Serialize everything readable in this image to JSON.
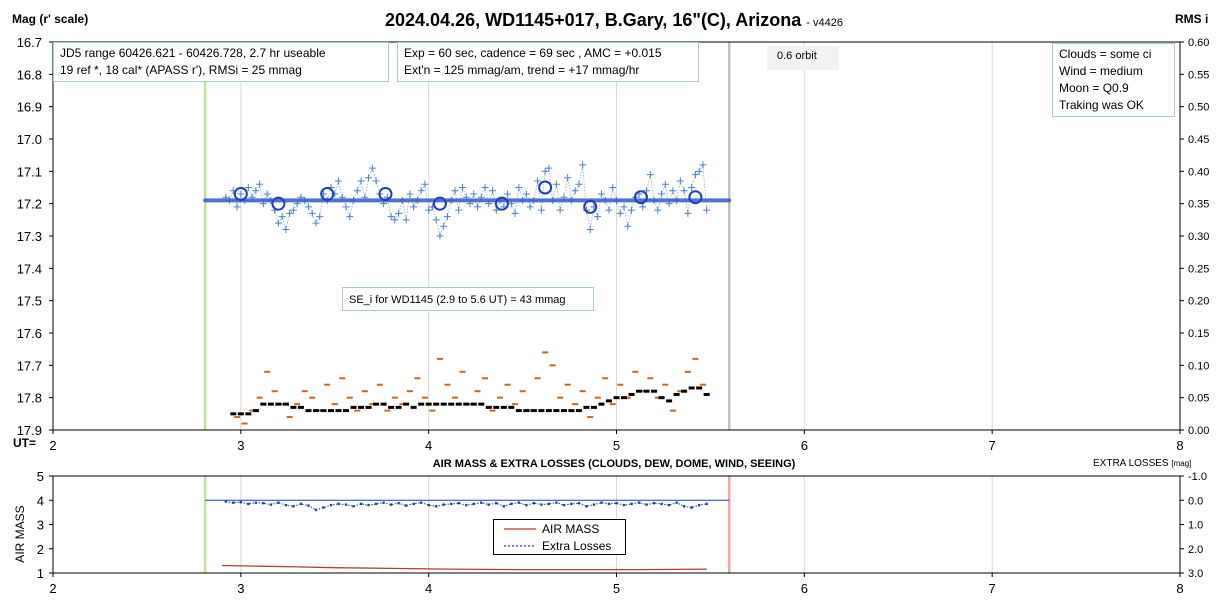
{
  "chart_data": [
    {
      "type": "scatter",
      "title": "2024.04.26, WD1145+017, B.Gary, 16\"(C), Arizona",
      "subtitle": "- v4426",
      "ylabel": "Mag (r' scale)",
      "y2label": "RMS i",
      "xlabel": "UT=",
      "xlim": [
        2,
        8
      ],
      "ylim": [
        16.7,
        17.9
      ],
      "y2lim": [
        0,
        0.6
      ],
      "y_reversed": true,
      "x_ticks": [
        "2",
        "3",
        "4",
        "5",
        "6",
        "7",
        "8"
      ],
      "y_ticks": [
        "16.7",
        "16.8",
        "16.9",
        "17.0",
        "17.1",
        "17.2",
        "17.3",
        "17.4",
        "17.5",
        "17.6",
        "17.7",
        "17.8",
        "17.9"
      ],
      "y2_ticks": [
        "0.60",
        "0.55",
        "0.50",
        "0.45",
        "0.40",
        "0.35",
        "0.30",
        "0.25",
        "0.20",
        "0.15",
        "0.10",
        "0.05",
        "0.00"
      ],
      "grid": "vertical",
      "vertical_markers": [
        {
          "x": 2.81,
          "color": "#bfe39a"
        },
        {
          "x": 5.6,
          "color": "#c0c0c0"
        }
      ],
      "annotations": {
        "info": [
          "JD5 range 60426.621 - 60426.728, 2.7 hr useable",
          "19 ref *, 18 cal*  (APASS r'), RMSi = 25 mmag"
        ],
        "exposure": [
          "Exp = 60 sec, cadence = 69 sec , AMC = +0.015",
          "Ext'n = 125 mmag/am, trend = +17 mmag/hr"
        ],
        "orbit": "0.6 orbit",
        "conditions": [
          "Clouds = some ci",
          "Wind    = medium",
          "Moon    =  Q0.9",
          "Traking was OK"
        ],
        "se_note": "SE_i for WD1145 (2.9 to 5.6 UT) = 43 mmag"
      },
      "series": [
        {
          "role": "individual",
          "x": [
            2.92,
            2.94,
            2.96,
            2.98,
            3.0,
            3.02,
            3.04,
            3.06,
            3.08,
            3.1,
            3.12,
            3.14,
            3.16,
            3.18,
            3.2,
            3.22,
            3.24,
            3.26,
            3.28,
            3.3,
            3.32,
            3.34,
            3.36,
            3.38,
            3.4,
            3.42,
            3.44,
            3.46,
            3.48,
            3.5,
            3.52,
            3.54,
            3.56,
            3.58,
            3.6,
            3.62,
            3.64,
            3.66,
            3.68,
            3.7,
            3.72,
            3.74,
            3.76,
            3.78,
            3.8,
            3.82,
            3.84,
            3.86,
            3.88,
            3.9,
            3.92,
            3.94,
            3.96,
            3.98,
            4.0,
            4.02,
            4.04,
            4.06,
            4.08,
            4.1,
            4.12,
            4.14,
            4.16,
            4.18,
            4.2,
            4.22,
            4.24,
            4.26,
            4.28,
            4.3,
            4.32,
            4.34,
            4.36,
            4.38,
            4.4,
            4.42,
            4.44,
            4.46,
            4.48,
            4.5,
            4.52,
            4.54,
            4.56,
            4.58,
            4.6,
            4.62,
            4.64,
            4.66,
            4.68,
            4.7,
            4.72,
            4.74,
            4.76,
            4.78,
            4.8,
            4.82,
            4.84,
            4.86,
            4.88,
            4.9,
            4.92,
            4.94,
            4.96,
            4.98,
            5.0,
            5.02,
            5.04,
            5.06,
            5.08,
            5.1,
            5.12,
            5.14,
            5.16,
            5.18,
            5.2,
            5.22,
            5.24,
            5.26,
            5.28,
            5.3,
            5.32,
            5.34,
            5.36,
            5.38,
            5.4,
            5.42,
            5.44,
            5.46,
            5.48
          ],
          "y": [
            17.18,
            17.19,
            17.16,
            17.21,
            17.17,
            17.19,
            17.15,
            17.18,
            17.16,
            17.14,
            17.2,
            17.17,
            17.19,
            17.22,
            17.26,
            17.24,
            17.28,
            17.23,
            17.22,
            17.2,
            17.18,
            17.19,
            17.21,
            17.23,
            17.26,
            17.24,
            17.17,
            17.19,
            17.15,
            17.17,
            17.13,
            17.18,
            17.21,
            17.24,
            17.19,
            17.16,
            17.13,
            17.18,
            17.12,
            17.09,
            17.13,
            17.17,
            17.2,
            17.18,
            17.24,
            17.25,
            17.23,
            17.19,
            17.25,
            17.17,
            17.21,
            17.19,
            17.16,
            17.14,
            17.22,
            17.21,
            17.25,
            17.3,
            17.27,
            17.24,
            17.19,
            17.16,
            17.22,
            17.15,
            17.18,
            17.2,
            17.17,
            17.21,
            17.18,
            17.15,
            17.2,
            17.16,
            17.22,
            17.19,
            17.21,
            17.17,
            17.2,
            17.23,
            17.15,
            17.19,
            17.17,
            17.21,
            17.19,
            17.13,
            17.22,
            17.1,
            17.09,
            17.19,
            17.14,
            17.22,
            17.18,
            17.12,
            17.19,
            17.16,
            17.14,
            17.08,
            17.22,
            17.28,
            17.21,
            17.24,
            17.17,
            17.19,
            17.22,
            17.15,
            17.19,
            17.23,
            17.21,
            17.27,
            17.22,
            17.18,
            17.17,
            17.21,
            17.16,
            17.11,
            17.19,
            17.22,
            17.17,
            17.14,
            17.2,
            17.16,
            17.19,
            17.13,
            17.16,
            17.23,
            17.15,
            17.11,
            17.1,
            17.08,
            17.22
          ],
          "color": "#4f81c7"
        },
        {
          "role": "binned",
          "x": [
            3.0,
            3.2,
            3.46,
            3.77,
            4.06,
            4.39,
            4.62,
            4.86,
            5.13,
            5.42
          ],
          "y": [
            17.17,
            17.2,
            17.17,
            17.17,
            17.2,
            17.2,
            17.15,
            17.21,
            17.18,
            17.18
          ],
          "color": "#1f3fb8"
        },
        {
          "role": "fit",
          "x": [
            2.81,
            5.6
          ],
          "y": [
            17.19,
            17.19
          ],
          "color": "#3f63c8"
        },
        {
          "role": "rms_orange",
          "x": [
            2.98,
            3.02,
            3.06,
            3.1,
            3.14,
            3.18,
            3.22,
            3.26,
            3.3,
            3.34,
            3.38,
            3.42,
            3.46,
            3.5,
            3.54,
            3.58,
            3.62,
            3.66,
            3.7,
            3.74,
            3.78,
            3.82,
            3.86,
            3.9,
            3.94,
            3.98,
            4.02,
            4.06,
            4.1,
            4.14,
            4.18,
            4.22,
            4.26,
            4.3,
            4.34,
            4.38,
            4.42,
            4.46,
            4.5,
            4.54,
            4.58,
            4.62,
            4.66,
            4.7,
            4.74,
            4.78,
            4.82,
            4.86,
            4.9,
            4.94,
            4.98,
            5.02,
            5.06,
            5.1,
            5.14,
            5.18,
            5.22,
            5.26,
            5.3,
            5.34,
            5.38,
            5.42,
            5.46
          ],
          "y": [
            0.02,
            0.01,
            0.03,
            0.05,
            0.09,
            0.06,
            0.04,
            0.02,
            0.04,
            0.06,
            0.05,
            0.03,
            0.07,
            0.04,
            0.08,
            0.05,
            0.03,
            0.06,
            0.04,
            0.07,
            0.03,
            0.05,
            0.04,
            0.06,
            0.08,
            0.05,
            0.03,
            0.11,
            0.07,
            0.05,
            0.09,
            0.04,
            0.06,
            0.08,
            0.03,
            0.05,
            0.07,
            0.04,
            0.06,
            0.03,
            0.08,
            0.12,
            0.1,
            0.05,
            0.07,
            0.04,
            0.06,
            0.02,
            0.05,
            0.08,
            0.04,
            0.07,
            0.05,
            0.09,
            0.06,
            0.08,
            0.05,
            0.07,
            0.03,
            0.06,
            0.09,
            0.11,
            0.07
          ],
          "color": "#c86a1e"
        },
        {
          "role": "rms_black",
          "x": [
            2.96,
            3.0,
            3.04,
            3.08,
            3.12,
            3.16,
            3.2,
            3.24,
            3.28,
            3.32,
            3.36,
            3.4,
            3.44,
            3.48,
            3.52,
            3.56,
            3.6,
            3.64,
            3.68,
            3.72,
            3.76,
            3.8,
            3.84,
            3.88,
            3.92,
            3.96,
            4.0,
            4.04,
            4.08,
            4.12,
            4.16,
            4.2,
            4.24,
            4.28,
            4.32,
            4.36,
            4.4,
            4.44,
            4.48,
            4.52,
            4.56,
            4.6,
            4.64,
            4.68,
            4.72,
            4.76,
            4.8,
            4.84,
            4.88,
            4.92,
            4.96,
            5.0,
            5.04,
            5.08,
            5.12,
            5.16,
            5.2,
            5.24,
            5.28,
            5.32,
            5.36,
            5.4,
            5.44,
            5.48
          ],
          "y": [
            0.025,
            0.025,
            0.025,
            0.03,
            0.04,
            0.04,
            0.04,
            0.04,
            0.035,
            0.035,
            0.03,
            0.03,
            0.03,
            0.03,
            0.03,
            0.03,
            0.035,
            0.035,
            0.035,
            0.04,
            0.04,
            0.035,
            0.035,
            0.04,
            0.035,
            0.04,
            0.04,
            0.04,
            0.04,
            0.04,
            0.04,
            0.04,
            0.04,
            0.04,
            0.035,
            0.035,
            0.035,
            0.035,
            0.03,
            0.03,
            0.03,
            0.03,
            0.03,
            0.03,
            0.03,
            0.03,
            0.03,
            0.035,
            0.035,
            0.04,
            0.045,
            0.05,
            0.05,
            0.055,
            0.06,
            0.06,
            0.06,
            0.05,
            0.045,
            0.055,
            0.06,
            0.065,
            0.065,
            0.055
          ],
          "color": "#000000"
        }
      ]
    },
    {
      "type": "line",
      "title": "AIR MASS & EXTRA LOSSES (CLOUDS, DEW, DOME, WIND, SEEING)",
      "ylabel": "AIR MASS",
      "y2label": "EXTRA LOSSES",
      "y2unit": "[mag]",
      "xlim": [
        2,
        8
      ],
      "ylim": [
        1,
        5
      ],
      "y2lim": [
        3.0,
        -1.0
      ],
      "x_ticks": [
        "2",
        "3",
        "4",
        "5",
        "6",
        "7",
        "8"
      ],
      "y_ticks": [
        "5",
        "4",
        "3",
        "2",
        "1"
      ],
      "y2_ticks": [
        "-1.0",
        "0.0",
        "1.0",
        "2.0",
        "3.0"
      ],
      "grid": "vertical",
      "vertical_markers": [
        {
          "x": 2.81,
          "color": "#bfe39a"
        },
        {
          "x": 5.6,
          "color": "#f2a6a6"
        }
      ],
      "legend": "center",
      "legend_entries": [
        "AIR MASS",
        "Extra Losses"
      ],
      "series": [
        {
          "name": "AIR MASS",
          "x": [
            2.9,
            3.1,
            3.3,
            3.5,
            3.7,
            3.9,
            4.1,
            4.3,
            4.5,
            4.7,
            4.9,
            5.1,
            5.3,
            5.48
          ],
          "y": [
            1.31,
            1.28,
            1.25,
            1.22,
            1.2,
            1.18,
            1.16,
            1.15,
            1.14,
            1.14,
            1.14,
            1.14,
            1.15,
            1.16
          ],
          "color": "#c0392b"
        },
        {
          "name": "Extra Losses",
          "x": [
            2.92,
            2.96,
            3.0,
            3.04,
            3.08,
            3.12,
            3.16,
            3.2,
            3.24,
            3.28,
            3.32,
            3.36,
            3.4,
            3.44,
            3.48,
            3.52,
            3.56,
            3.6,
            3.64,
            3.68,
            3.72,
            3.76,
            3.8,
            3.84,
            3.88,
            3.92,
            3.96,
            4.0,
            4.04,
            4.08,
            4.12,
            4.16,
            4.2,
            4.24,
            4.28,
            4.32,
            4.36,
            4.4,
            4.44,
            4.48,
            4.52,
            4.56,
            4.6,
            4.64,
            4.68,
            4.72,
            4.76,
            4.8,
            4.84,
            4.88,
            4.92,
            4.96,
            5.0,
            5.04,
            5.08,
            5.12,
            5.16,
            5.2,
            5.24,
            5.28,
            5.32,
            5.36,
            5.4,
            5.44,
            5.48
          ],
          "y": [
            0.05,
            0.1,
            0.08,
            0.15,
            0.1,
            0.12,
            0.18,
            0.1,
            0.2,
            0.25,
            0.15,
            0.22,
            0.4,
            0.3,
            0.2,
            0.15,
            0.18,
            0.25,
            0.15,
            0.2,
            0.15,
            0.1,
            0.18,
            0.12,
            0.22,
            0.15,
            0.1,
            0.2,
            0.25,
            0.18,
            0.15,
            0.12,
            0.2,
            0.15,
            0.1,
            0.18,
            0.12,
            0.25,
            0.15,
            0.1,
            0.2,
            0.12,
            0.18,
            0.15,
            0.1,
            0.2,
            0.15,
            0.12,
            0.25,
            0.18,
            0.1,
            0.15,
            0.12,
            0.2,
            0.15,
            0.1,
            0.18,
            0.12,
            0.15,
            0.2,
            0.1,
            0.25,
            0.3,
            0.2,
            0.15
          ],
          "color": "#1f3fb8"
        },
        {
          "role": "reference",
          "x": [
            2.81,
            5.6
          ],
          "y": [
            0.0,
            0.0
          ],
          "color": "#1f3fb8"
        }
      ]
    }
  ]
}
